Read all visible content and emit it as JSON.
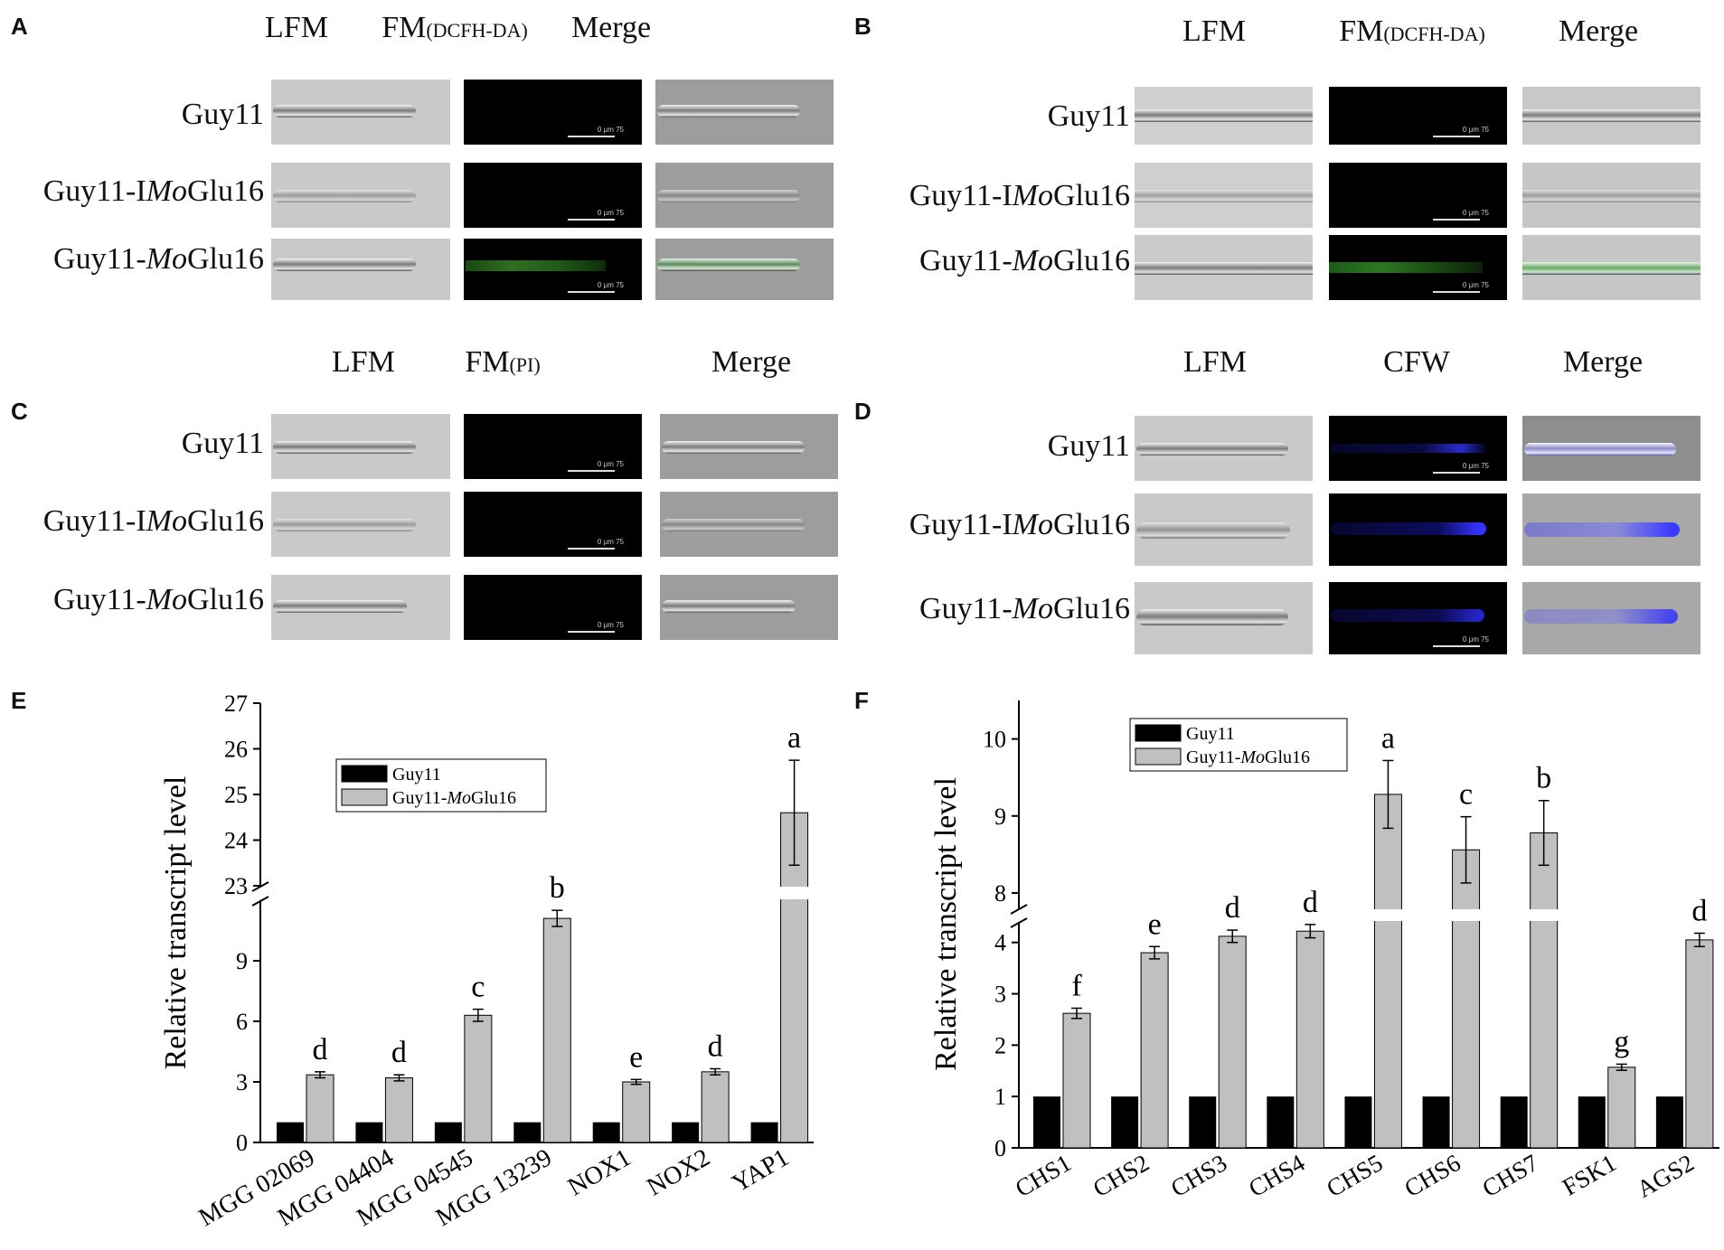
{
  "panels": {
    "A": {
      "letter": "A",
      "headers": [
        "LFM",
        "FM",
        "(DCFH-DA)",
        "Merge"
      ],
      "rows": [
        "Guy11",
        "Guy11-I",
        "Mo",
        "Glu16",
        "Guy11-",
        "Mo",
        "Glu16"
      ]
    },
    "B": {
      "letter": "B",
      "headers": [
        "LFM",
        "FM",
        "(DCFH-DA)",
        "Merge"
      ]
    },
    "C": {
      "letter": "C",
      "headers": [
        "LFM",
        "FM",
        "(PI)",
        "Merge"
      ]
    },
    "D": {
      "letter": "D",
      "headers": [
        "LFM",
        "CFW",
        "Merge"
      ]
    },
    "E": {
      "letter": "E"
    },
    "F": {
      "letter": "F"
    }
  },
  "row_labels": {
    "guy11": "Guy11",
    "imo_prefix": "Guy11-I",
    "mo_prefix": "Guy11-",
    "mo": "Mo",
    "glu": "Glu16"
  },
  "scale": {
    "zero": "0",
    "unit": "μm",
    "value": "75"
  },
  "chart_data": [
    {
      "type": "bar",
      "panel": "E",
      "ylabel": "Relative transcript level",
      "categories": [
        "MGG 02069",
        "MGG 04404",
        "MGG 04545",
        "MGG 13239",
        "NOX1",
        "NOX2",
        "YAP1"
      ],
      "series": [
        {
          "name": "Guy11",
          "values": [
            1,
            1,
            1,
            1,
            1,
            1,
            1
          ],
          "color": "#000000"
        },
        {
          "name": "Guy11-MoGlu16",
          "values": [
            3.35,
            3.2,
            6.3,
            11.1,
            3.0,
            3.5,
            24.6
          ],
          "errors": [
            0.15,
            0.15,
            0.3,
            0.4,
            0.12,
            0.15,
            1.15
          ],
          "color": "#c0c0c0"
        }
      ],
      "letters": [
        "d",
        "d",
        "c",
        "b",
        "e",
        "d",
        "a"
      ],
      "axis_break": {
        "lower": [
          0,
          12
        ],
        "upper": [
          23,
          27
        ]
      },
      "yticks_lower": [
        0,
        3,
        6,
        9
      ],
      "yticks_upper": [
        23,
        24,
        25,
        26,
        27
      ],
      "legend": [
        "Guy11",
        "Guy11-",
        "Mo",
        "Glu16"
      ]
    },
    {
      "type": "bar",
      "panel": "F",
      "ylabel": "Relative transcript level",
      "categories": [
        "CHS1",
        "CHS2",
        "CHS3",
        "CHS4",
        "CHS5",
        "CHS6",
        "CHS7",
        "FSK1",
        "AGS2"
      ],
      "series": [
        {
          "name": "Guy11",
          "values": [
            1,
            1,
            1,
            1,
            1,
            1,
            1,
            1,
            1
          ],
          "color": "#000000"
        },
        {
          "name": "Guy11-MoGlu16",
          "values": [
            2.62,
            3.8,
            4.12,
            4.22,
            9.28,
            8.56,
            8.78,
            1.57,
            4.05
          ],
          "errors": [
            0.1,
            0.12,
            0.12,
            0.13,
            0.44,
            0.43,
            0.42,
            0.06,
            0.13
          ],
          "color": "#c0c0c0"
        }
      ],
      "letters": [
        "f",
        "e",
        "d",
        "d",
        "a",
        "c",
        "b",
        "g",
        "d"
      ],
      "axis_break": {
        "lower": [
          0,
          4.4
        ],
        "upper": [
          7.8,
          10.5
        ]
      },
      "yticks_lower": [
        0,
        1,
        2,
        3,
        4
      ],
      "yticks_upper": [
        8,
        9,
        10
      ],
      "legend": [
        "Guy11",
        "Guy11-",
        "Mo",
        "Glu16"
      ]
    }
  ]
}
